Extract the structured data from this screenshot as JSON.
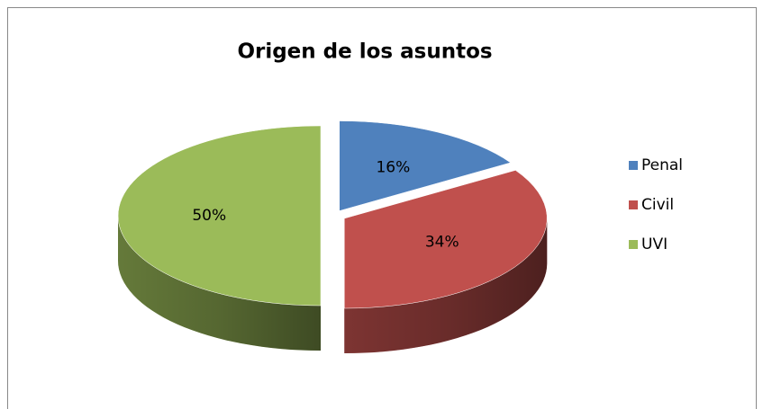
{
  "chart_data": {
    "type": "pie",
    "title": "Origen de los asuntos",
    "categories": [
      "Penal",
      "Civil",
      "UVI"
    ],
    "values": [
      16,
      34,
      50
    ],
    "value_labels": [
      "16%",
      "34%",
      "50%"
    ],
    "colors": [
      "#4f81bd",
      "#c0504d",
      "#9bbb59"
    ],
    "legend": "right"
  }
}
